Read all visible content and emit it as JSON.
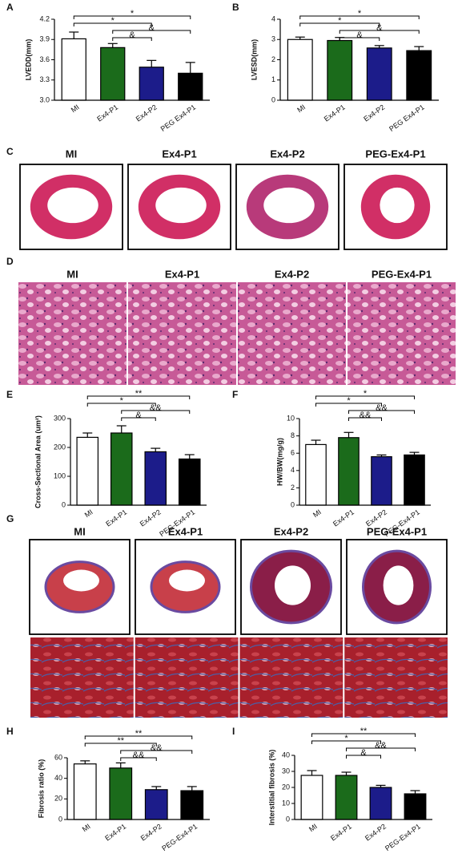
{
  "chart_data": [
    {
      "type": "bar",
      "panel": "A",
      "y_label": "LVEDD(mm)",
      "categories": [
        "MI",
        "Ex4-P1",
        "Ex4-P2",
        "PEG Ex4-P1"
      ],
      "values": [
        3.91,
        3.78,
        3.49,
        3.4
      ],
      "errors": [
        0.1,
        0.06,
        0.1,
        0.16
      ],
      "colors": [
        "#ffffff",
        "#1b6b1b",
        "#1c1c8a",
        "#000000"
      ],
      "ylim": [
        3.0,
        4.2
      ],
      "yticks": [
        {
          "value": 3.0,
          "label": "3.0"
        },
        3.3,
        3.6,
        3.9,
        4.2
      ],
      "annotations": [
        {
          "text": "*",
          "from": "MI",
          "to": "PEG Ex4-P1"
        },
        {
          "text": "*",
          "from": "MI",
          "to": "Ex4-P2"
        },
        {
          "text": "&",
          "from": "Ex4-P1",
          "to": "PEG Ex4-P1"
        },
        {
          "text": "&",
          "from": "Ex4-P1",
          "to": "Ex4-P2"
        }
      ]
    },
    {
      "type": "bar",
      "panel": "B",
      "y_label": "LVESD(mm)",
      "categories": [
        "MI",
        "Ex4-P1",
        "Ex4-P2",
        "PEG Ex4-P1"
      ],
      "values": [
        3.0,
        2.95,
        2.58,
        2.45
      ],
      "errors": [
        0.12,
        0.15,
        0.12,
        0.2
      ],
      "colors": [
        "#ffffff",
        "#1b6b1b",
        "#1c1c8a",
        "#000000"
      ],
      "ylim": [
        0,
        4
      ],
      "yticks": [
        0,
        1,
        2,
        3,
        4
      ],
      "annotations": [
        {
          "text": "*",
          "from": "MI",
          "to": "PEG Ex4-P1"
        },
        {
          "text": "*",
          "from": "MI",
          "to": "Ex4-P2"
        },
        {
          "text": "&",
          "from": "Ex4-P1",
          "to": "PEG Ex4-P1"
        },
        {
          "text": "&",
          "from": "Ex4-P1",
          "to": "Ex4-P2"
        }
      ]
    },
    {
      "type": "bar",
      "panel": "E",
      "y_label": "Cross-Sectional Area (um²)",
      "categories": [
        "MI",
        "Ex4-P1",
        "Ex4-P2",
        "PEG-Ex4-P1"
      ],
      "values": [
        235,
        250,
        185,
        160
      ],
      "errors": [
        15,
        25,
        12,
        15
      ],
      "colors": [
        "#ffffff",
        "#1b6b1b",
        "#1c1c8a",
        "#000000"
      ],
      "ylim": [
        0,
        300
      ],
      "yticks": [
        0,
        100,
        200,
        300
      ],
      "annotations": [
        {
          "text": "**",
          "from": "MI",
          "to": "PEG-Ex4-P1"
        },
        {
          "text": "*",
          "from": "MI",
          "to": "Ex4-P2"
        },
        {
          "text": "&&",
          "from": "Ex4-P1",
          "to": "PEG-Ex4-P1"
        },
        {
          "text": "&",
          "from": "Ex4-P1",
          "to": "Ex4-P2"
        }
      ]
    },
    {
      "type": "bar",
      "panel": "F",
      "y_label": "HW/BW(mg/g)",
      "categories": [
        "MI",
        "Ex4-P1",
        "Ex4-P2",
        "PEG-Ex4-P1"
      ],
      "values": [
        7.0,
        7.8,
        5.6,
        5.8
      ],
      "errors": [
        0.5,
        0.6,
        0.2,
        0.3
      ],
      "colors": [
        "#ffffff",
        "#1b6b1b",
        "#1c1c8a",
        "#000000"
      ],
      "ylim": [
        0,
        10
      ],
      "yticks": [
        0,
        2,
        4,
        6,
        8,
        10
      ],
      "annotations": [
        {
          "text": "*",
          "from": "MI",
          "to": "PEG-Ex4-P1"
        },
        {
          "text": "*",
          "from": "MI",
          "to": "Ex4-P2"
        },
        {
          "text": "&&",
          "from": "Ex4-P1",
          "to": "PEG-Ex4-P1"
        },
        {
          "text": "&&",
          "from": "Ex4-P1",
          "to": "Ex4-P2"
        }
      ]
    },
    {
      "type": "bar",
      "panel": "H",
      "y_label": "Fibrosis ratio (%)",
      "categories": [
        "MI",
        "Ex4-P1",
        "Ex4-P2",
        "PEG-Ex4-P1"
      ],
      "values": [
        54,
        50,
        29,
        28
      ],
      "errors": [
        3,
        5,
        3,
        4
      ],
      "colors": [
        "#ffffff",
        "#1b6b1b",
        "#1c1c8a",
        "#000000"
      ],
      "ylim": [
        0,
        60
      ],
      "yticks": [
        0,
        20,
        40,
        60
      ],
      "annotations": [
        {
          "text": "**",
          "from": "MI",
          "to": "PEG-Ex4-P1"
        },
        {
          "text": "**",
          "from": "MI",
          "to": "Ex4-P2"
        },
        {
          "text": "&&",
          "from": "Ex4-P1",
          "to": "PEG-Ex4-P1"
        },
        {
          "text": "&&",
          "from": "Ex4-P1",
          "to": "Ex4-P2"
        }
      ]
    },
    {
      "type": "bar",
      "panel": "I",
      "y_label": "Interstitial fibrosis (%)",
      "categories": [
        "MI",
        "Ex4-P1",
        "Ex4-P2",
        "PEG-Ex4-P1"
      ],
      "values": [
        27.5,
        27.5,
        20,
        16
      ],
      "errors": [
        3,
        2,
        1.3,
        2
      ],
      "colors": [
        "#ffffff",
        "#1b6b1b",
        "#1c1c8a",
        "#000000"
      ],
      "ylim": [
        0,
        40
      ],
      "yticks": [
        0,
        10,
        20,
        30,
        40
      ],
      "annotations": [
        {
          "text": "**",
          "from": "MI",
          "to": "PEG-Ex4-P1"
        },
        {
          "text": "*",
          "from": "MI",
          "to": "Ex4-P2"
        },
        {
          "text": "&&",
          "from": "Ex4-P1",
          "to": "PEG-Ex4-P1"
        },
        {
          "text": "&",
          "from": "Ex4-P1",
          "to": "Ex4-P2"
        }
      ]
    }
  ],
  "image_panels": [
    {
      "panel": "C",
      "labels": [
        "MI",
        "Ex4-P1",
        "Ex4-P2",
        "PEG-Ex4-P1"
      ]
    },
    {
      "panel": "D",
      "labels": [
        "MI",
        "Ex4-P1",
        "Ex4-P2",
        "PEG-Ex4-P1"
      ]
    },
    {
      "panel": "G",
      "labels": [
        "MI",
        "Ex4-P1",
        "Ex4-P2",
        "PEG-Ex4-P1"
      ]
    }
  ]
}
